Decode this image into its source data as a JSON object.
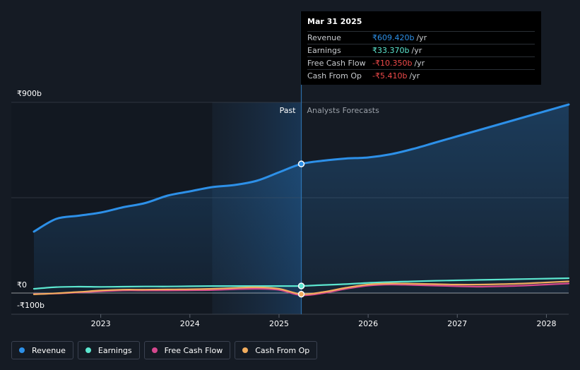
{
  "chart_data": {
    "type": "line",
    "y_unit_prefix": "₹",
    "y_tick_labels": [
      "₹900b",
      "₹0",
      "-₹100b"
    ],
    "ylim": [
      -100,
      900
    ],
    "x_tick_labels": [
      "2023",
      "2024",
      "2025",
      "2026",
      "2027",
      "2028"
    ],
    "x_ticks": [
      2023,
      2024,
      2025,
      2026,
      2027,
      2028
    ],
    "xlim": [
      2022.25,
      2028.25
    ],
    "past_start": 2024.25,
    "divider_x": 2025.25,
    "region_labels": {
      "past": "Past",
      "forecast": "Analysts Forecasts"
    },
    "grid": true,
    "series": [
      {
        "name": "Revenue",
        "color": "#2d90e8",
        "fill": true,
        "points": [
          [
            2022.25,
            290
          ],
          [
            2022.5,
            350
          ],
          [
            2022.75,
            365
          ],
          [
            2023.0,
            380
          ],
          [
            2023.25,
            405
          ],
          [
            2023.5,
            425
          ],
          [
            2023.75,
            460
          ],
          [
            2024.0,
            480
          ],
          [
            2024.25,
            500
          ],
          [
            2024.5,
            510
          ],
          [
            2024.75,
            530
          ],
          [
            2025.0,
            570
          ],
          [
            2025.25,
            609.42
          ],
          [
            2025.5,
            625
          ],
          [
            2025.75,
            635
          ],
          [
            2026.0,
            640
          ],
          [
            2026.25,
            655
          ],
          [
            2026.5,
            680
          ],
          [
            2026.75,
            710
          ],
          [
            2027.0,
            740
          ],
          [
            2027.25,
            770
          ],
          [
            2027.5,
            800
          ],
          [
            2027.75,
            830
          ],
          [
            2028.0,
            860
          ],
          [
            2028.25,
            890
          ]
        ]
      },
      {
        "name": "Earnings",
        "color": "#5ce6cf",
        "fill": false,
        "points": [
          [
            2022.25,
            20
          ],
          [
            2022.5,
            28
          ],
          [
            2022.75,
            30
          ],
          [
            2023.0,
            29
          ],
          [
            2023.25,
            30
          ],
          [
            2023.5,
            31
          ],
          [
            2023.75,
            31
          ],
          [
            2024.0,
            32
          ],
          [
            2024.25,
            33
          ],
          [
            2024.5,
            33
          ],
          [
            2024.75,
            33
          ],
          [
            2025.0,
            33
          ],
          [
            2025.25,
            33.37
          ],
          [
            2025.5,
            38
          ],
          [
            2025.75,
            42
          ],
          [
            2026.0,
            48
          ],
          [
            2026.25,
            52
          ],
          [
            2026.5,
            55
          ],
          [
            2026.75,
            58
          ],
          [
            2027.0,
            60
          ],
          [
            2027.25,
            62
          ],
          [
            2027.5,
            64
          ],
          [
            2027.75,
            66
          ],
          [
            2028.0,
            68
          ],
          [
            2028.25,
            70
          ]
        ]
      },
      {
        "name": "Free Cash Flow",
        "color": "#d5488e",
        "fill": false,
        "points": [
          [
            2022.25,
            -5
          ],
          [
            2022.5,
            -2
          ],
          [
            2022.75,
            3
          ],
          [
            2023.0,
            8
          ],
          [
            2023.25,
            12
          ],
          [
            2023.5,
            12
          ],
          [
            2023.75,
            12
          ],
          [
            2024.0,
            13
          ],
          [
            2024.25,
            14
          ],
          [
            2024.5,
            18
          ],
          [
            2024.75,
            20
          ],
          [
            2025.0,
            15
          ],
          [
            2025.25,
            -10.35
          ],
          [
            2025.5,
            0
          ],
          [
            2025.75,
            20
          ],
          [
            2026.0,
            35
          ],
          [
            2026.25,
            40
          ],
          [
            2026.5,
            38
          ],
          [
            2026.75,
            35
          ],
          [
            2027.0,
            32
          ],
          [
            2027.25,
            30
          ],
          [
            2027.5,
            32
          ],
          [
            2027.75,
            35
          ],
          [
            2028.0,
            40
          ],
          [
            2028.25,
            45
          ]
        ]
      },
      {
        "name": "Cash From Op",
        "color": "#f2ad5e",
        "fill": false,
        "points": [
          [
            2022.25,
            -6
          ],
          [
            2022.5,
            -1
          ],
          [
            2022.75,
            5
          ],
          [
            2023.0,
            12
          ],
          [
            2023.25,
            16
          ],
          [
            2023.5,
            16
          ],
          [
            2023.75,
            17
          ],
          [
            2024.0,
            18
          ],
          [
            2024.25,
            20
          ],
          [
            2024.5,
            24
          ],
          [
            2024.75,
            27
          ],
          [
            2025.0,
            20
          ],
          [
            2025.25,
            -5.41
          ],
          [
            2025.5,
            5
          ],
          [
            2025.75,
            25
          ],
          [
            2026.0,
            40
          ],
          [
            2026.25,
            45
          ],
          [
            2026.5,
            44
          ],
          [
            2026.75,
            42
          ],
          [
            2027.0,
            40
          ],
          [
            2027.25,
            40
          ],
          [
            2027.5,
            42
          ],
          [
            2027.75,
            45
          ],
          [
            2028.0,
            50
          ],
          [
            2028.25,
            55
          ]
        ]
      }
    ],
    "markers": [
      {
        "series": "Revenue",
        "x": 2025.25,
        "y": 609.42
      },
      {
        "series": "Earnings",
        "x": 2025.25,
        "y": 33.37
      },
      {
        "series": "Cash From Op",
        "x": 2025.25,
        "y": -5.41
      }
    ]
  },
  "tooltip": {
    "title": "Mar 31 2025",
    "rows": [
      {
        "name": "Revenue",
        "value": "₹609.420b",
        "unit": "/yr",
        "color": "#2d90e8"
      },
      {
        "name": "Earnings",
        "value": "₹33.370b",
        "unit": "/yr",
        "color": "#5ce6cf"
      },
      {
        "name": "Free Cash Flow",
        "value": "-₹10.350b",
        "unit": "/yr",
        "color": "#f04a4a"
      },
      {
        "name": "Cash From Op",
        "value": "-₹5.410b",
        "unit": "/yr",
        "color": "#f04a4a"
      }
    ]
  },
  "legend": [
    {
      "label": "Revenue",
      "color": "#2d90e8"
    },
    {
      "label": "Earnings",
      "color": "#5ce6cf"
    },
    {
      "label": "Free Cash Flow",
      "color": "#d5488e"
    },
    {
      "label": "Cash From Op",
      "color": "#f2ad5e"
    }
  ]
}
